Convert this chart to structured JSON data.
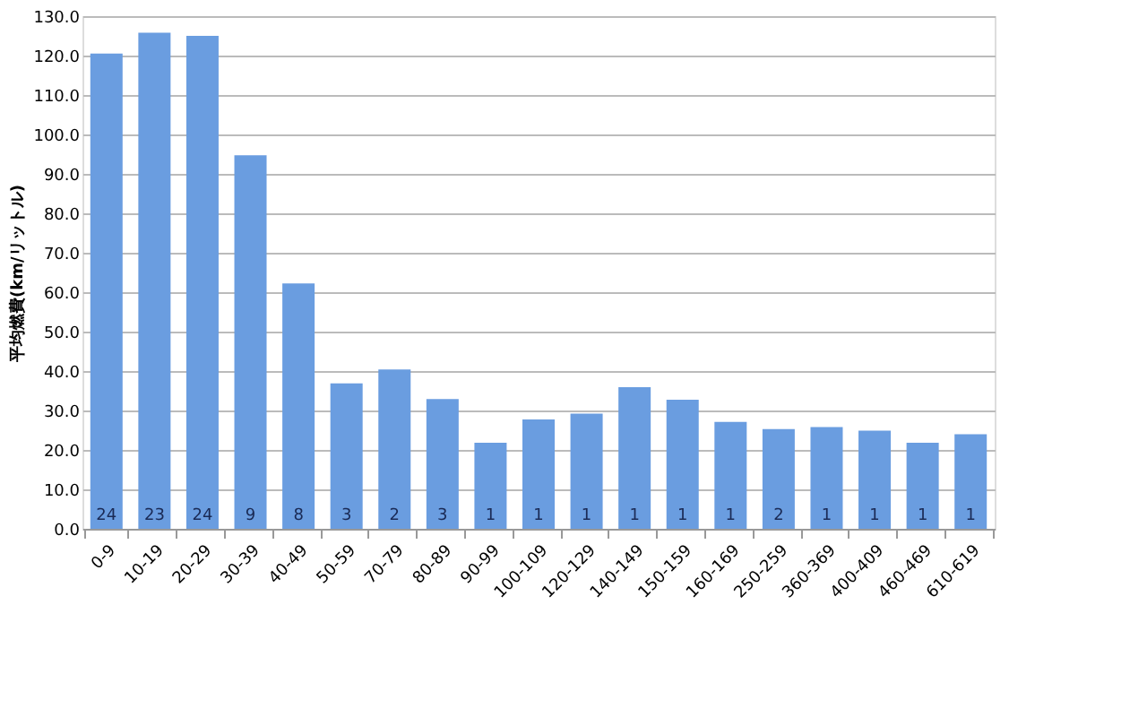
{
  "chart_data": {
    "type": "bar",
    "ylabel": "平均燃費(km/リットル)",
    "categories": [
      "0-9",
      "10-19",
      "20-29",
      "30-39",
      "40-49",
      "50-59",
      "70-79",
      "80-89",
      "90-99",
      "100-109",
      "120-129",
      "140-149",
      "150-159",
      "160-169",
      "250-259",
      "360-369",
      "400-409",
      "460-469",
      "610-619"
    ],
    "values": [
      120.5,
      125.8,
      125.0,
      94.7,
      62.2,
      36.9,
      40.4,
      32.9,
      21.8,
      27.7,
      29.2,
      35.9,
      32.7,
      27.1,
      25.3,
      25.8,
      24.9,
      21.8,
      24.0
    ],
    "annotations": [
      {
        "text": "24",
        "x": "0-9",
        "y": 0
      },
      {
        "text": "23",
        "x": "10-19",
        "y": 0
      },
      {
        "text": "24",
        "x": "20-29",
        "y": 0
      },
      {
        "text": "9",
        "x": "30-39",
        "y": 0
      },
      {
        "text": "8",
        "x": "40-49",
        "y": 0
      },
      {
        "text": "3",
        "x": "50-59",
        "y": 0
      },
      {
        "text": "2",
        "x": "70-79",
        "y": 0
      },
      {
        "text": "3",
        "x": "80-89",
        "y": 0
      },
      {
        "text": "1",
        "x": "90-99",
        "y": 0
      },
      {
        "text": "1",
        "x": "100-109",
        "y": 0
      },
      {
        "text": "1",
        "x": "120-129",
        "y": 0
      },
      {
        "text": "1",
        "x": "140-149",
        "y": 0
      },
      {
        "text": "1",
        "x": "150-159",
        "y": 0
      },
      {
        "text": "1",
        "x": "160-169",
        "y": 0
      },
      {
        "text": "2",
        "x": "250-259",
        "y": 0
      },
      {
        "text": "1",
        "x": "360-369",
        "y": 0
      },
      {
        "text": "1",
        "x": "400-409",
        "y": 0
      },
      {
        "text": "1",
        "x": "460-469",
        "y": 0
      },
      {
        "text": "1",
        "x": "610-619",
        "y": 0
      }
    ],
    "color": "#6a9de0",
    "ylim": [
      0,
      130
    ],
    "yticks": [
      {
        "value": 0,
        "label": "0.0"
      },
      {
        "value": 10,
        "label": "10.0"
      },
      {
        "value": 20,
        "label": "20.0"
      },
      {
        "value": 30,
        "label": "30.0"
      },
      {
        "value": 40,
        "label": "40.0"
      },
      {
        "value": 50,
        "label": "50.0"
      },
      {
        "value": 60,
        "label": "60.0"
      },
      {
        "value": 70,
        "label": "70.0"
      },
      {
        "value": 80,
        "label": "80.0"
      },
      {
        "value": 90,
        "label": "90.0"
      },
      {
        "value": 100,
        "label": "100.0"
      },
      {
        "value": 110,
        "label": "110.0"
      },
      {
        "value": 120,
        "label": "120.0"
      },
      {
        "value": 130,
        "label": "130.0"
      }
    ],
    "grid": "y"
  }
}
